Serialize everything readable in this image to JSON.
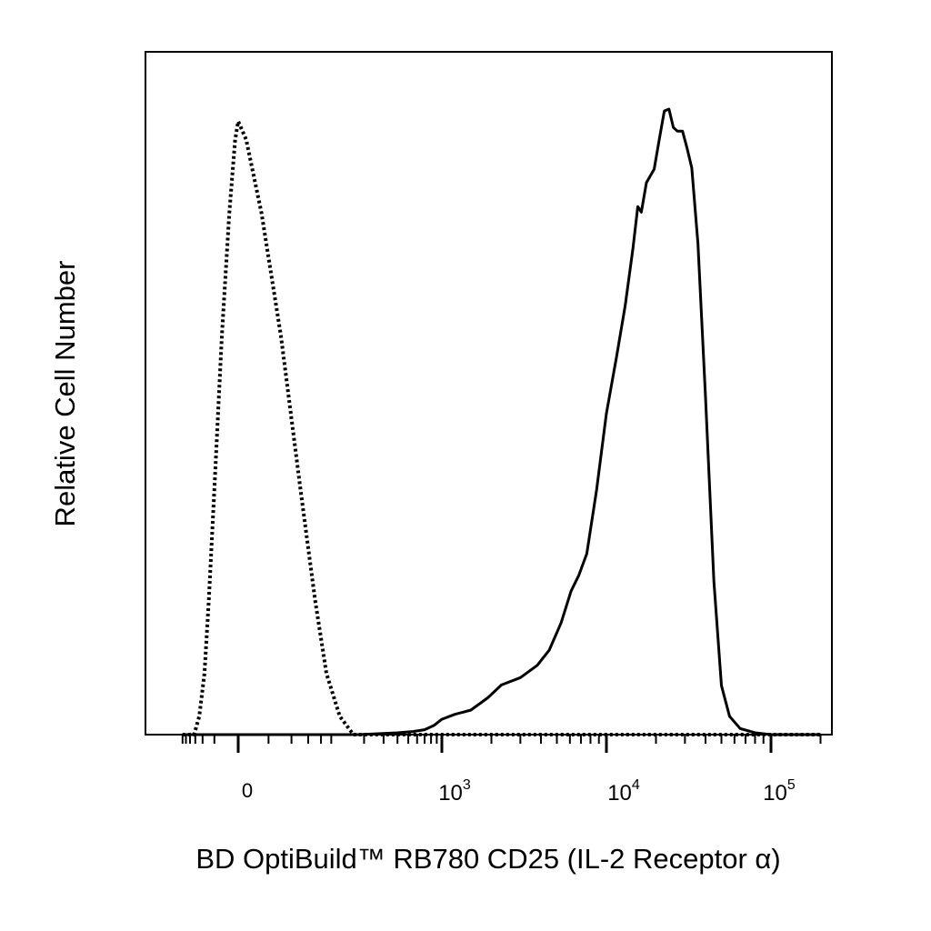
{
  "chart_data": {
    "type": "line",
    "title": "",
    "xlabel": "BD OptiBuild™ RB780 CD25 (IL-2 Receptor α)",
    "ylabel": "Relative Cell Number",
    "x_scale": "biexponential",
    "xlim": [
      -300,
      200000
    ],
    "ylim": [
      0,
      100
    ],
    "x_ticks": [
      {
        "label": "0",
        "value": 0
      },
      {
        "label": "10",
        "exp": "3",
        "value": 1000
      },
      {
        "label": "10",
        "exp": "4",
        "value": 10000
      },
      {
        "label": "10",
        "exp": "5",
        "value": 100000
      }
    ],
    "grid": false,
    "legend": "none",
    "series": [
      {
        "style": "dotted",
        "color": "#000000",
        "points": [
          [
            -300,
            0
          ],
          [
            -160,
            0
          ],
          [
            -120,
            3
          ],
          [
            -90,
            10
          ],
          [
            -70,
            22
          ],
          [
            -50,
            40
          ],
          [
            -30,
            65
          ],
          [
            -15,
            85
          ],
          [
            -5,
            97
          ],
          [
            0,
            100
          ],
          [
            5,
            97
          ],
          [
            15,
            85
          ],
          [
            30,
            65
          ],
          [
            50,
            40
          ],
          [
            70,
            22
          ],
          [
            90,
            10
          ],
          [
            120,
            3
          ],
          [
            160,
            0
          ],
          [
            200000,
            0
          ]
        ]
      },
      {
        "style": "solid",
        "color": "#000000",
        "points": [
          [
            -300,
            0
          ],
          [
            180,
            0
          ],
          [
            400,
            0.3
          ],
          [
            550,
            0.5
          ],
          [
            700,
            0.8
          ],
          [
            850,
            1.5
          ],
          [
            1000,
            2.5
          ],
          [
            1200,
            3.3
          ],
          [
            1500,
            4.0
          ],
          [
            1900,
            6.0
          ],
          [
            2300,
            8.1
          ],
          [
            3000,
            9.3
          ],
          [
            3800,
            11.3
          ],
          [
            4500,
            13.8
          ],
          [
            5300,
            18.2
          ],
          [
            6100,
            23.4
          ],
          [
            6800,
            26.0
          ],
          [
            7600,
            29.5
          ],
          [
            8700,
            39.8
          ],
          [
            10000,
            52.4
          ],
          [
            11500,
            61.5
          ],
          [
            13000,
            69.9
          ],
          [
            14500,
            79.3
          ],
          [
            15500,
            86.1
          ],
          [
            16300,
            85.2
          ],
          [
            17500,
            90.0
          ],
          [
            19500,
            92.2
          ],
          [
            21000,
            97.2
          ],
          [
            22500,
            101.7
          ],
          [
            24000,
            102.0
          ],
          [
            25500,
            99.0
          ],
          [
            27000,
            98.4
          ],
          [
            29000,
            98.4
          ],
          [
            31000,
            95.5
          ],
          [
            33000,
            92.4
          ],
          [
            36000,
            80.0
          ],
          [
            40000,
            55.0
          ],
          [
            45000,
            25.0
          ],
          [
            50000,
            8.0
          ],
          [
            56000,
            3.0
          ],
          [
            65000,
            1.0
          ],
          [
            80000,
            0.3
          ],
          [
            100000,
            0
          ],
          [
            200000,
            0
          ]
        ]
      }
    ]
  }
}
